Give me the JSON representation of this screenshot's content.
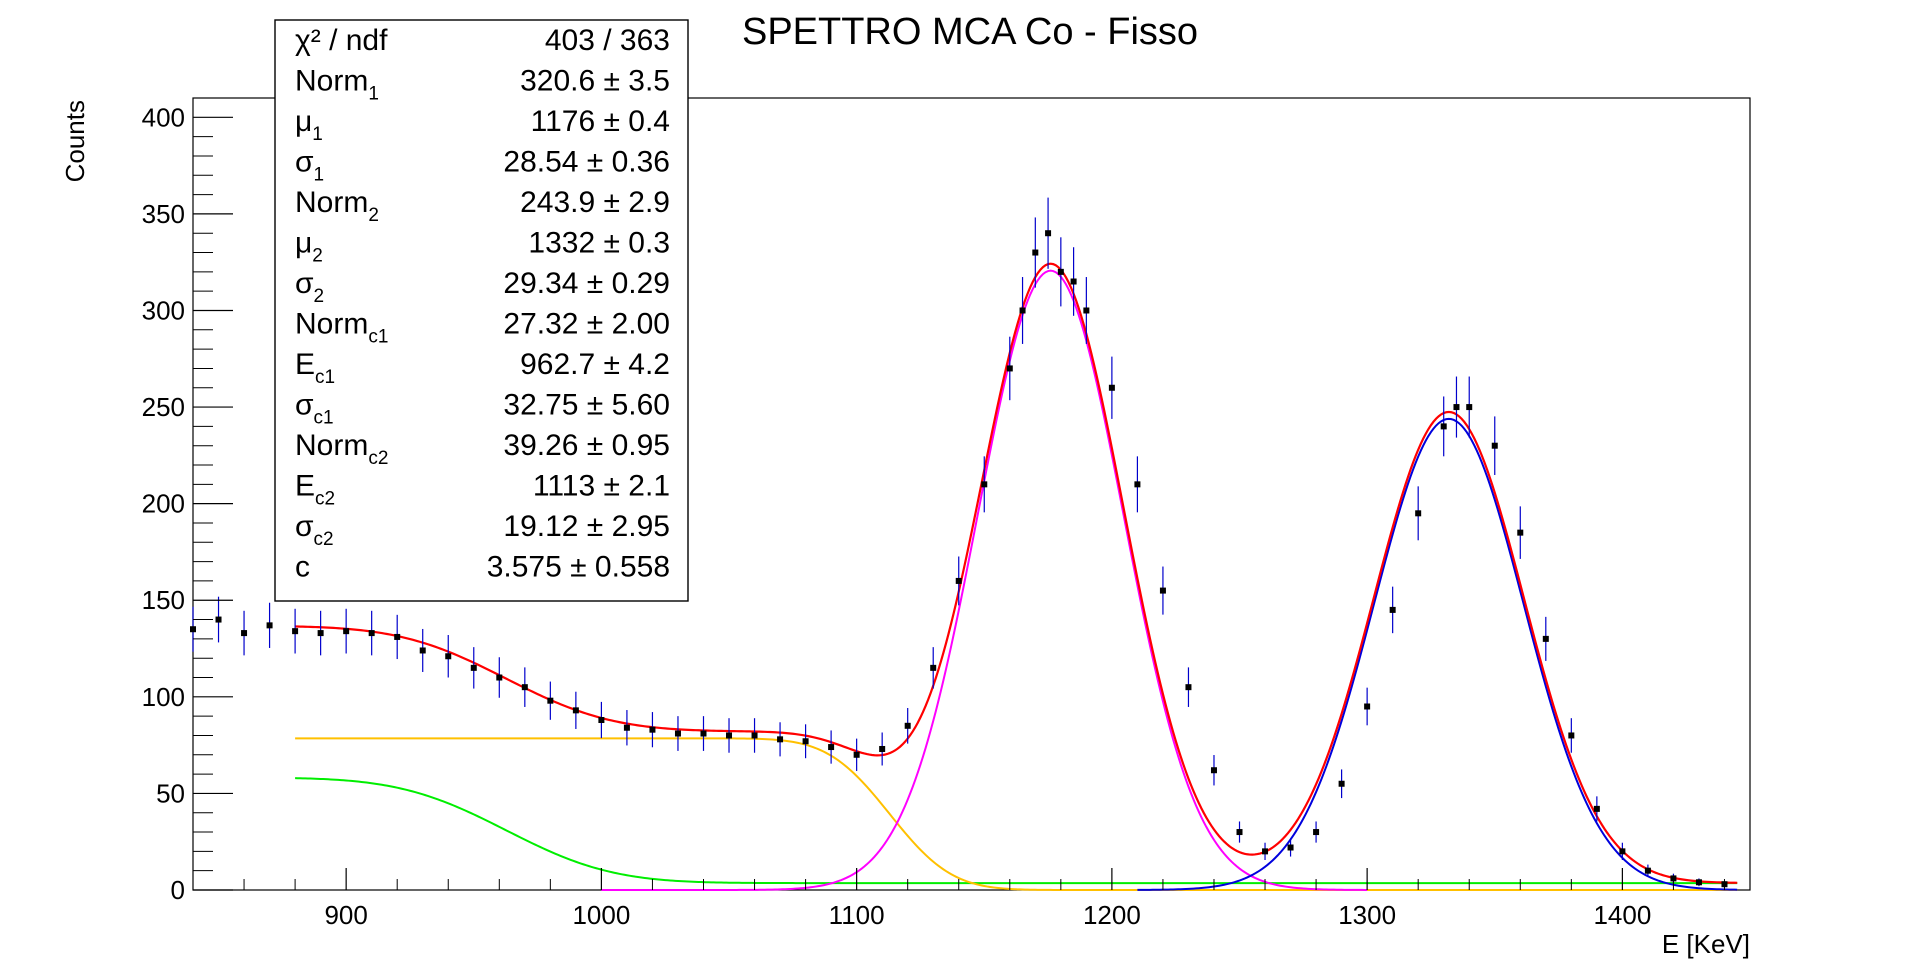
{
  "chart_data": {
    "type": "scatter",
    "title": "SPETTRO MCA Co - Fisso",
    "xlabel": "E [KeV]",
    "ylabel": "Counts",
    "xlim": [
      840,
      1450
    ],
    "ylim": [
      0,
      410
    ],
    "x_ticks": [
      900,
      1000,
      1100,
      1200,
      1300,
      1400
    ],
    "y_ticks": [
      0,
      50,
      100,
      150,
      200,
      250,
      300,
      350,
      400
    ],
    "x_tick_labels": [
      "900",
      "1000",
      "1100",
      "1200",
      "1300",
      "1400"
    ],
    "y_tick_labels": [
      "0",
      "50",
      "100",
      "150",
      "200",
      "250",
      "300",
      "350",
      "400"
    ],
    "grid": false,
    "colors": {
      "data_points": "#000000",
      "error_bars": "#0000cc",
      "total_fit": "#ff0000",
      "peak1_gauss": "#ff00ff",
      "peak2_gauss": "#0000dd",
      "compton1": "#00ee00",
      "compton2": "#ffc000"
    },
    "data_points": {
      "x": [
        840,
        850,
        860,
        870,
        880,
        890,
        900,
        910,
        920,
        930,
        940,
        950,
        960,
        970,
        980,
        990,
        1000,
        1010,
        1020,
        1030,
        1040,
        1050,
        1060,
        1070,
        1080,
        1090,
        1100,
        1110,
        1120,
        1130,
        1140,
        1150,
        1160,
        1165,
        1170,
        1175,
        1180,
        1185,
        1190,
        1200,
        1210,
        1220,
        1230,
        1240,
        1250,
        1260,
        1270,
        1280,
        1290,
        1300,
        1310,
        1320,
        1330,
        1335,
        1340,
        1350,
        1360,
        1370,
        1380,
        1390,
        1400,
        1410,
        1420,
        1430,
        1440
      ],
      "y": [
        135,
        140,
        133,
        137,
        134,
        133,
        134,
        133,
        131,
        124,
        121,
        115,
        110,
        105,
        98,
        93,
        88,
        84,
        83,
        81,
        81,
        80,
        80,
        78,
        77,
        74,
        70,
        73,
        85,
        115,
        160,
        210,
        270,
        300,
        330,
        340,
        320,
        315,
        300,
        260,
        210,
        155,
        105,
        62,
        30,
        20,
        22,
        30,
        55,
        95,
        145,
        195,
        240,
        250,
        250,
        230,
        185,
        130,
        80,
        42,
        20,
        10,
        6,
        4,
        3
      ]
    },
    "statistics_box": {
      "rows": [
        {
          "name": "χ² / ndf",
          "value": "403 / 363"
        },
        {
          "name": "Norm",
          "sub": "1",
          "value": "320.6 ± 3.5"
        },
        {
          "name": "μ",
          "sub": "1",
          "value": "1176 ± 0.4"
        },
        {
          "name": "σ",
          "sub": "1",
          "value": "28.54 ± 0.36"
        },
        {
          "name": "Norm",
          "sub": "2",
          "value": "243.9 ± 2.9"
        },
        {
          "name": "μ",
          "sub": "2",
          "value": "1332 ± 0.3"
        },
        {
          "name": "σ",
          "sub": "2",
          "value": "29.34 ± 0.29"
        },
        {
          "name": "Norm",
          "sub": "c1",
          "value": "27.32 ± 2.00"
        },
        {
          "name": "E",
          "sub": "c1",
          "value": "962.7 ± 4.2"
        },
        {
          "name": "σ",
          "sub": "c1",
          "value": "32.75 ± 5.60"
        },
        {
          "name": "Norm",
          "sub": "c2",
          "value": "39.26 ± 0.95"
        },
        {
          "name": "E",
          "sub": "c2",
          "value": "1113 ± 2.1"
        },
        {
          "name": "σ",
          "sub": "c2",
          "value": "19.12 ± 2.95"
        },
        {
          "name": "c",
          "sub": "",
          "value": "3.575 ± 0.558"
        }
      ]
    },
    "fit": {
      "norm1": 320.6,
      "mu1": 1176,
      "sigma1": 28.54,
      "norm2": 243.9,
      "mu2": 1332,
      "sigma2": 29.34,
      "norm_c1": 27.32,
      "e_c1": 962.7,
      "sigma_c1": 32.75,
      "norm_c2": 39.26,
      "e_c2": 1113,
      "sigma_c2": 19.12,
      "c": 3.575,
      "range": [
        880,
        1445
      ]
    }
  }
}
